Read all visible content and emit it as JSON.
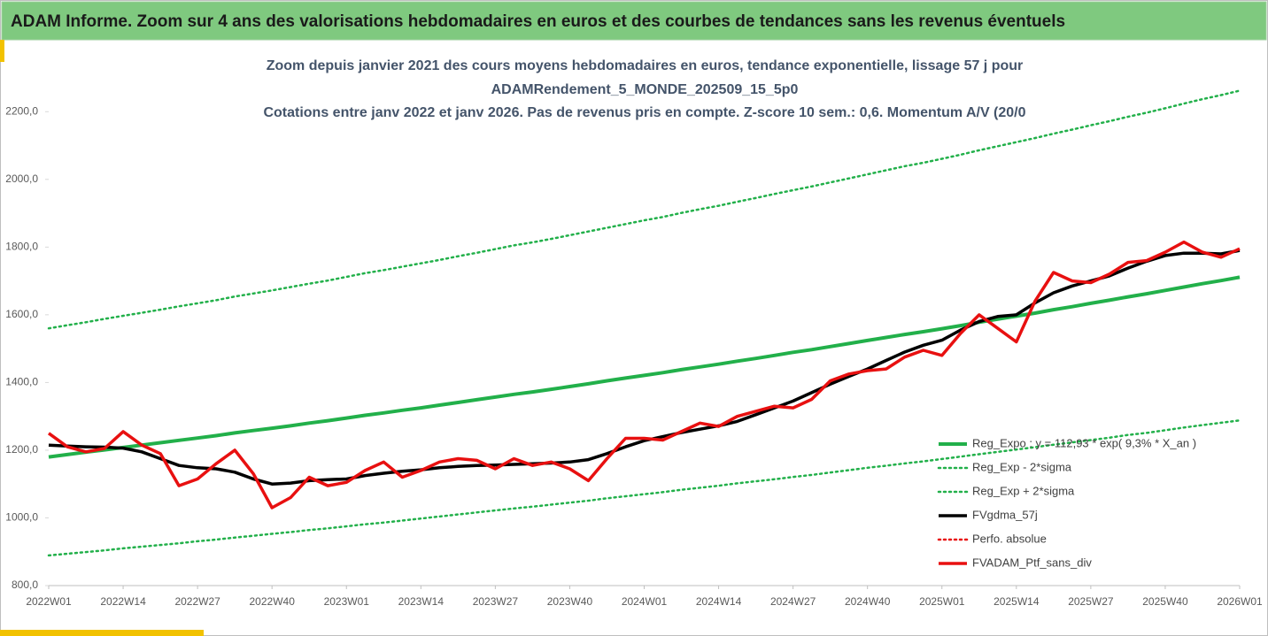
{
  "header": {
    "title": "ADAM Informe. Zoom sur 4 ans des valorisations hebdomadaires en euros et des courbes de tendances sans les revenus éventuels"
  },
  "chart_data": {
    "type": "line",
    "title_lines": [
      "Zoom depuis janvier 2021 des cours moyens hebdomadaires  en euros, tendance exponentielle, lissage 57 j pour",
      "ADAMRendement_5_MONDE_202509_15_5p0",
      "Cotations entre janv 2022 et janv 2026. Pas de revenus pris en compte. Z-score 10 sem.: 0,6. Momentum A/V (20/0"
    ],
    "categories": [
      "2022W01",
      null,
      null,
      null,
      "2022W14",
      null,
      null,
      null,
      "2022W27",
      null,
      null,
      null,
      "2022W40",
      null,
      null,
      null,
      "2023W01",
      null,
      null,
      null,
      "2023W14",
      null,
      null,
      null,
      "2023W27",
      null,
      null,
      null,
      "2023W40",
      null,
      null,
      null,
      "2024W01",
      null,
      null,
      null,
      "2024W14",
      null,
      null,
      null,
      "2024W27",
      null,
      null,
      null,
      "2024W40",
      null,
      null,
      null,
      "2025W01",
      null,
      null,
      null,
      "2025W14",
      null,
      null,
      null,
      "2025W27",
      null,
      null,
      null,
      "2025W40",
      null,
      null,
      null,
      "2026W01"
    ],
    "ylim": [
      800,
      2300
    ],
    "yticks": [
      {
        "value": 800,
        "label": "800,0"
      },
      {
        "value": 1000,
        "label": "1000,0"
      },
      {
        "value": 1200,
        "label": "1200,0"
      },
      {
        "value": 1400,
        "label": "1400,0"
      },
      {
        "value": 1600,
        "label": "1600,0"
      },
      {
        "value": 1800,
        "label": "1800,0"
      },
      {
        "value": 2000,
        "label": "2000,0"
      },
      {
        "value": 2200,
        "label": "2200,0"
      }
    ],
    "grid": false,
    "series": [
      {
        "name": "Reg_Expo : y = 112,93 * exp( 9,3% * X_an )",
        "color": "#22b04a",
        "style": "solid",
        "width": 4,
        "values": [
          1180,
          1187,
          1194,
          1201,
          1208,
          1215,
          1222,
          1229,
          1236,
          1243,
          1251,
          1258,
          1265,
          1272,
          1280,
          1287,
          1295,
          1303,
          1310,
          1318,
          1325,
          1333,
          1341,
          1349,
          1357,
          1365,
          1372,
          1380,
          1388,
          1396,
          1405,
          1413,
          1421,
          1429,
          1438,
          1446,
          1454,
          1463,
          1471,
          1480,
          1489,
          1497,
          1506,
          1515,
          1524,
          1533,
          1542,
          1550,
          1559,
          1568,
          1578,
          1587,
          1596,
          1605,
          1615,
          1624,
          1634,
          1643,
          1653,
          1662,
          1672,
          1682,
          1692,
          1701,
          1711
        ]
      },
      {
        "name": "Reg_Exp - 2*sigma",
        "color": "#22b04a",
        "style": "dotted",
        "width": 2.5,
        "values": [
          889,
          894,
          899,
          904,
          910,
          915,
          920,
          925,
          931,
          936,
          942,
          947,
          953,
          958,
          964,
          969,
          975,
          981,
          986,
          992,
          998,
          1004,
          1010,
          1016,
          1022,
          1028,
          1033,
          1039,
          1045,
          1051,
          1058,
          1064,
          1070,
          1076,
          1083,
          1089,
          1095,
          1102,
          1108,
          1114,
          1121,
          1127,
          1134,
          1141,
          1148,
          1154,
          1161,
          1167,
          1174,
          1181,
          1188,
          1195,
          1202,
          1209,
          1216,
          1223,
          1230,
          1237,
          1245,
          1251,
          1259,
          1267,
          1274,
          1281,
          1288
        ]
      },
      {
        "name": "Reg_Exp + 2*sigma",
        "color": "#22b04a",
        "style": "dotted",
        "width": 2.5,
        "values": [
          1560,
          1569,
          1578,
          1588,
          1597,
          1606,
          1615,
          1625,
          1634,
          1643,
          1654,
          1663,
          1672,
          1682,
          1692,
          1701,
          1712,
          1723,
          1732,
          1742,
          1752,
          1762,
          1773,
          1783,
          1794,
          1805,
          1814,
          1824,
          1835,
          1846,
          1857,
          1868,
          1879,
          1889,
          1901,
          1912,
          1922,
          1934,
          1945,
          1957,
          1968,
          1979,
          1991,
          2003,
          2015,
          2027,
          2039,
          2049,
          2061,
          2073,
          2086,
          2098,
          2110,
          2122,
          2135,
          2147,
          2160,
          2172,
          2185,
          2197,
          2210,
          2224,
          2237,
          2249,
          2262
        ]
      },
      {
        "name": "FVgdma_57j",
        "color": "#000000",
        "style": "solid",
        "width": 3.5,
        "values": [
          1215,
          1212,
          1210,
          1209,
          1206,
          1195,
          1175,
          1155,
          1148,
          1145,
          1135,
          1115,
          1100,
          1103,
          1110,
          1113,
          1115,
          1125,
          1132,
          1138,
          1142,
          1148,
          1152,
          1155,
          1156,
          1158,
          1160,
          1162,
          1165,
          1172,
          1190,
          1210,
          1228,
          1240,
          1252,
          1262,
          1272,
          1285,
          1305,
          1325,
          1345,
          1370,
          1395,
          1418,
          1440,
          1465,
          1490,
          1510,
          1525,
          1555,
          1580,
          1595,
          1600,
          1635,
          1665,
          1685,
          1700,
          1715,
          1738,
          1758,
          1775,
          1782,
          1782,
          1780,
          1790
        ]
      },
      {
        "name": "Perfo. absolue",
        "color": "#e81010",
        "style": "dotted",
        "width": 2.5
      },
      {
        "name": "FVADAM_Ptf_sans_div",
        "color": "#e81010",
        "style": "solid",
        "width": 3.5,
        "values": [
          1250,
          1210,
          1195,
          1205,
          1255,
          1215,
          1190,
          1095,
          1115,
          1160,
          1200,
          1130,
          1030,
          1060,
          1120,
          1095,
          1105,
          1140,
          1165,
          1120,
          1140,
          1165,
          1175,
          1170,
          1145,
          1175,
          1155,
          1165,
          1145,
          1110,
          1175,
          1235,
          1235,
          1230,
          1255,
          1280,
          1270,
          1300,
          1315,
          1330,
          1325,
          1350,
          1405,
          1425,
          1435,
          1440,
          1475,
          1495,
          1480,
          1545,
          1600,
          1560,
          1520,
          1640,
          1725,
          1700,
          1695,
          1720,
          1755,
          1760,
          1785,
          1815,
          1785,
          1770,
          1795
        ]
      }
    ]
  }
}
